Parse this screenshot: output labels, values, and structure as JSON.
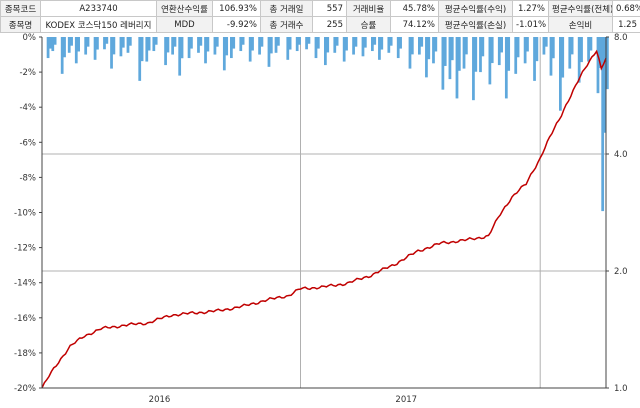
{
  "stats": {
    "rows": [
      [
        {
          "label": "종목코드",
          "value": "A233740"
        },
        {
          "label": "연환산수익률",
          "value": "106.93%"
        },
        {
          "label": "총 거래일",
          "value": "557"
        },
        {
          "label": "거래비율",
          "value": "45.78%"
        },
        {
          "label": "평균수익률(수익)",
          "value": "1.27%"
        },
        {
          "label": "평균수익률(전체)",
          "value": "0.68%"
        }
      ],
      [
        {
          "label": "종목명",
          "value": "KODEX 코스닥150 레버리지"
        },
        {
          "label": "MDD",
          "value": "-9.92%"
        },
        {
          "label": "총 거래수",
          "value": "255"
        },
        {
          "label": "승률",
          "value": "74.12%"
        },
        {
          "label": "평균수익률(손실)",
          "value": "-1.01%"
        },
        {
          "label": "손익비",
          "value": "1.25"
        }
      ]
    ]
  },
  "colors": {
    "equity_line": "#c00000",
    "drawdown_fill": "#5fa8dc",
    "grid": "#b0b0b0",
    "axis": "#444444"
  },
  "chart_data": {
    "type": "line+area",
    "title": "",
    "x_ticks": [
      {
        "label": "2016",
        "index": 50
      },
      {
        "label": "2017",
        "index": 155
      }
    ],
    "x_gridlines_at_index": [
      110,
      212
    ],
    "n_points": 240,
    "left_axis": {
      "ylim": [
        -20,
        0
      ],
      "ticks": [
        0,
        -2,
        -4,
        -6,
        -8,
        -10,
        -12,
        -14,
        -16,
        -18,
        -20
      ],
      "tick_labels": [
        "0%",
        "-2%",
        "-4%",
        "-6%",
        "-8%",
        "-10%",
        "-12%",
        "-14%",
        "-16%",
        "-18%",
        "-20%"
      ]
    },
    "right_axis": {
      "scale": "log",
      "ylim": [
        1.0,
        8.0
      ],
      "ticks": [
        1.0,
        2.0,
        4.0,
        8.0
      ],
      "tick_labels": [
        "1.0",
        "2.0",
        "4.0",
        "8.0"
      ],
      "gridlines": [
        2.0,
        4.0
      ]
    },
    "series": [
      {
        "type": "line",
        "axis": "right",
        "equity_anchors": [
          [
            0,
            1.0
          ],
          [
            5,
            1.12
          ],
          [
            12,
            1.28
          ],
          [
            18,
            1.36
          ],
          [
            25,
            1.42
          ],
          [
            35,
            1.45
          ],
          [
            45,
            1.47
          ],
          [
            55,
            1.54
          ],
          [
            65,
            1.56
          ],
          [
            75,
            1.58
          ],
          [
            85,
            1.62
          ],
          [
            95,
            1.68
          ],
          [
            105,
            1.73
          ],
          [
            110,
            1.8
          ],
          [
            120,
            1.82
          ],
          [
            130,
            1.86
          ],
          [
            140,
            1.95
          ],
          [
            150,
            2.08
          ],
          [
            160,
            2.25
          ],
          [
            170,
            2.36
          ],
          [
            180,
            2.4
          ],
          [
            190,
            2.46
          ],
          [
            195,
            2.8
          ],
          [
            200,
            3.1
          ],
          [
            206,
            3.35
          ],
          [
            212,
            3.9
          ],
          [
            220,
            4.9
          ],
          [
            226,
            5.8
          ],
          [
            232,
            6.8
          ],
          [
            236,
            7.4
          ],
          [
            238,
            6.6
          ],
          [
            240,
            7.05
          ]
        ]
      },
      {
        "type": "area",
        "axis": "left",
        "drawdown_events": [
          [
            2,
            -1.2
          ],
          [
            4,
            -0.8
          ],
          [
            8,
            -2.1
          ],
          [
            11,
            -0.9
          ],
          [
            14,
            -1.5
          ],
          [
            18,
            -1.0
          ],
          [
            22,
            -1.3
          ],
          [
            26,
            -0.7
          ],
          [
            29,
            -1.8
          ],
          [
            33,
            -1.1
          ],
          [
            36,
            -0.9
          ],
          [
            41,
            -2.5
          ],
          [
            44,
            -1.4
          ],
          [
            47,
            -0.8
          ],
          [
            52,
            -1.6
          ],
          [
            55,
            -1.0
          ],
          [
            58,
            -2.2
          ],
          [
            62,
            -1.2
          ],
          [
            66,
            -0.9
          ],
          [
            69,
            -1.5
          ],
          [
            73,
            -1.0
          ],
          [
            77,
            -1.9
          ],
          [
            80,
            -1.2
          ],
          [
            84,
            -0.8
          ],
          [
            88,
            -1.4
          ],
          [
            92,
            -1.0
          ],
          [
            96,
            -1.7
          ],
          [
            99,
            -0.9
          ],
          [
            104,
            -1.3
          ],
          [
            108,
            -0.8
          ],
          [
            112,
            -0.7
          ],
          [
            116,
            -1.2
          ],
          [
            120,
            -1.6
          ],
          [
            124,
            -0.9
          ],
          [
            128,
            -1.4
          ],
          [
            132,
            -1.0
          ],
          [
            136,
            -1.1
          ],
          [
            140,
            -0.8
          ],
          [
            143,
            -1.3
          ],
          [
            147,
            -0.9
          ],
          [
            151,
            -1.2
          ],
          [
            156,
            -1.8
          ],
          [
            160,
            -1.0
          ],
          [
            163,
            -2.3
          ],
          [
            166,
            -1.5
          ],
          [
            170,
            -3.0
          ],
          [
            173,
            -2.4
          ],
          [
            176,
            -3.5
          ],
          [
            179,
            -1.8
          ],
          [
            183,
            -3.6
          ],
          [
            186,
            -2.0
          ],
          [
            190,
            -2.7
          ],
          [
            194,
            -1.6
          ],
          [
            197,
            -3.5
          ],
          [
            201,
            -2.1
          ],
          [
            205,
            -1.5
          ],
          [
            209,
            -2.5
          ],
          [
            213,
            -1.0
          ],
          [
            216,
            -2.2
          ],
          [
            220,
            -4.2
          ],
          [
            224,
            -1.8
          ],
          [
            228,
            -2.6
          ],
          [
            232,
            -1.4
          ],
          [
            236,
            -3.2
          ],
          [
            238,
            -9.92
          ],
          [
            239,
            -5.4
          ]
        ]
      }
    ]
  }
}
